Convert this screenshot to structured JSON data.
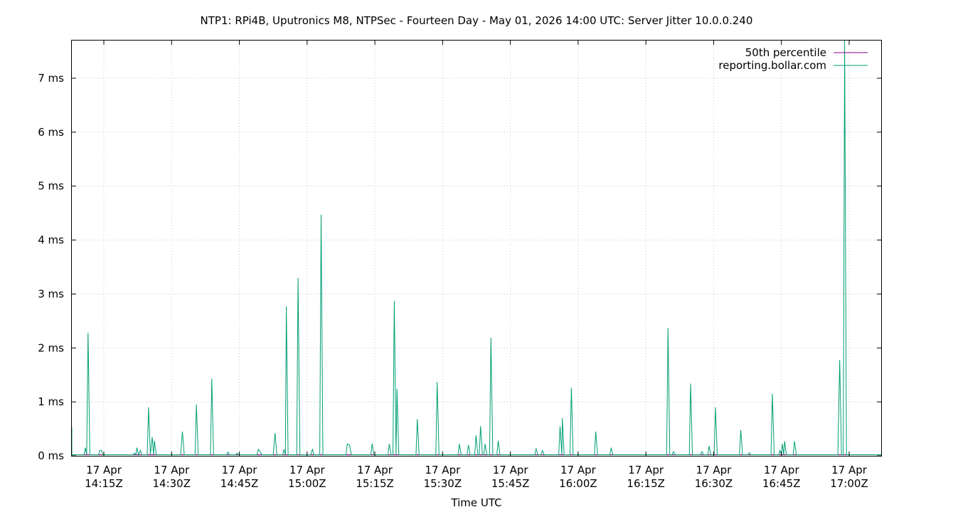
{
  "chart_data": {
    "type": "line",
    "title": "NTP1: RPi4B, Uputronics M8, NTPSec - Fourteen Day - May 01, 2026 14:00 UTC: Server Jitter 10.0.0.240",
    "xlabel": "Time UTC",
    "ylabel": "",
    "x_range_minutes": [
      0,
      180
    ],
    "ylim": [
      0,
      7.7
    ],
    "y_unit": "ms",
    "y_ticks": [
      {
        "value": 0,
        "label": "0 ms"
      },
      {
        "value": 1,
        "label": "1 ms"
      },
      {
        "value": 2,
        "label": "2 ms"
      },
      {
        "value": 3,
        "label": "3 ms"
      },
      {
        "value": 4,
        "label": "4 ms"
      },
      {
        "value": 5,
        "label": "5 ms"
      },
      {
        "value": 6,
        "label": "6 ms"
      },
      {
        "value": 7,
        "label": "7 ms"
      }
    ],
    "x_ticks": [
      {
        "value": 15,
        "date": "17 Apr",
        "time": "14:15Z"
      },
      {
        "value": 30,
        "date": "17 Apr",
        "time": "14:30Z"
      },
      {
        "value": 45,
        "date": "17 Apr",
        "time": "14:45Z"
      },
      {
        "value": 60,
        "date": "17 Apr",
        "time": "15:00Z"
      },
      {
        "value": 75,
        "date": "17 Apr",
        "time": "15:15Z"
      },
      {
        "value": 90,
        "date": "17 Apr",
        "time": "15:30Z"
      },
      {
        "value": 105,
        "date": "17 Apr",
        "time": "15:45Z"
      },
      {
        "value": 120,
        "date": "17 Apr",
        "time": "16:00Z"
      },
      {
        "value": 135,
        "date": "17 Apr",
        "time": "16:15Z"
      },
      {
        "value": 150,
        "date": "17 Apr",
        "time": "16:30Z"
      },
      {
        "value": 165,
        "date": "17 Apr",
        "time": "16:45Z"
      },
      {
        "value": 180,
        "date": "17 Apr",
        "time": "17:00Z"
      }
    ],
    "grid": true,
    "legend_position": "top-right",
    "series": [
      {
        "name": "50th percentile",
        "color": "#800080",
        "points": [
          [
            0,
            0.02
          ],
          [
            180,
            0.02
          ]
        ]
      },
      {
        "name": "reporting.bollar.com",
        "color": "#009e73",
        "baseline": 0.02,
        "points": [
          [
            0,
            0.06
          ],
          [
            1,
            0.02
          ],
          [
            2.5,
            0.02
          ],
          [
            2.9,
            0.53
          ],
          [
            3.4,
            0.02
          ],
          [
            4.4,
            0.02
          ],
          [
            4.7,
            0.45
          ],
          [
            5.1,
            0.02
          ],
          [
            10.6,
            0.02
          ],
          [
            10.9,
            0.15
          ],
          [
            11.2,
            0.02
          ],
          [
            11.5,
            2.28
          ],
          [
            11.9,
            0.02
          ],
          [
            13.8,
            0.02
          ],
          [
            14.1,
            0.1
          ],
          [
            14.5,
            0.1
          ],
          [
            14.8,
            0.02
          ],
          [
            21.5,
            0.02
          ],
          [
            21.8,
            0.05
          ],
          [
            22.1,
            0.02
          ],
          [
            22.3,
            0.15
          ],
          [
            22.7,
            0.02
          ],
          [
            23.1,
            0.1
          ],
          [
            23.4,
            0.02
          ],
          [
            24.6,
            0.02
          ],
          [
            24.9,
            0.9
          ],
          [
            25.3,
            0.02
          ],
          [
            25.7,
            0.35
          ],
          [
            26.0,
            0.02
          ],
          [
            26.2,
            0.28
          ],
          [
            26.6,
            0.02
          ],
          [
            32.0,
            0.02
          ],
          [
            32.4,
            0.45
          ],
          [
            32.8,
            0.02
          ],
          [
            35.2,
            0.02
          ],
          [
            35.5,
            0.95
          ],
          [
            35.9,
            0.02
          ],
          [
            38.6,
            0.02
          ],
          [
            38.9,
            1.43
          ],
          [
            39.3,
            0.02
          ],
          [
            42.2,
            0.02
          ],
          [
            42.5,
            0.07
          ],
          [
            42.8,
            0.02
          ],
          [
            44.2,
            0.02
          ],
          [
            44.5,
            0.05
          ],
          [
            44.8,
            0.02
          ],
          [
            48.9,
            0.02
          ],
          [
            49.2,
            0.12
          ],
          [
            49.6,
            0.08
          ],
          [
            50.0,
            0.02
          ],
          [
            52.5,
            0.02
          ],
          [
            52.9,
            0.42
          ],
          [
            53.3,
            0.02
          ],
          [
            54.6,
            0.02
          ],
          [
            54.9,
            0.12
          ],
          [
            55.2,
            0.02
          ],
          [
            55.4,
            2.77
          ],
          [
            55.8,
            0.02
          ],
          [
            57.7,
            0.02
          ],
          [
            58.0,
            3.3
          ],
          [
            58.4,
            0.02
          ],
          [
            60.8,
            0.02
          ],
          [
            61.2,
            0.12
          ],
          [
            61.5,
            0.02
          ],
          [
            62.8,
            0.02
          ],
          [
            63.1,
            4.47
          ],
          [
            63.5,
            0.02
          ],
          [
            68.6,
            0.02
          ],
          [
            68.9,
            0.22
          ],
          [
            69.4,
            0.2
          ],
          [
            69.8,
            0.02
          ],
          [
            74.1,
            0.02
          ],
          [
            74.4,
            0.23
          ],
          [
            74.8,
            0.02
          ],
          [
            77.9,
            0.02
          ],
          [
            78.2,
            0.22
          ],
          [
            78.6,
            0.02
          ],
          [
            79.0,
            0.02
          ],
          [
            79.3,
            2.87
          ],
          [
            79.7,
            0.02
          ],
          [
            79.9,
            1.24
          ],
          [
            80.3,
            0.02
          ],
          [
            84.1,
            0.02
          ],
          [
            84.4,
            0.68
          ],
          [
            84.8,
            0.02
          ],
          [
            88.5,
            0.02
          ],
          [
            88.8,
            1.37
          ],
          [
            89.2,
            0.02
          ],
          [
            93.4,
            0.02
          ],
          [
            93.7,
            0.22
          ],
          [
            94.1,
            0.02
          ],
          [
            95.4,
            0.02
          ],
          [
            95.7,
            0.2
          ],
          [
            96.1,
            0.02
          ],
          [
            97.1,
            0.02
          ],
          [
            97.4,
            0.38
          ],
          [
            97.8,
            0.02
          ],
          [
            98.1,
            0.02
          ],
          [
            98.4,
            0.55
          ],
          [
            98.8,
            0.02
          ],
          [
            99.1,
            0.02
          ],
          [
            99.4,
            0.22
          ],
          [
            99.8,
            0.02
          ],
          [
            100.4,
            0.02
          ],
          [
            100.7,
            2.19
          ],
          [
            101.1,
            0.02
          ],
          [
            102.0,
            0.02
          ],
          [
            102.3,
            0.28
          ],
          [
            102.7,
            0.02
          ],
          [
            110.4,
            0.02
          ],
          [
            110.7,
            0.13
          ],
          [
            111.1,
            0.02
          ],
          [
            111.8,
            0.02
          ],
          [
            112.1,
            0.1
          ],
          [
            112.5,
            0.02
          ],
          [
            115.7,
            0.02
          ],
          [
            116.0,
            0.55
          ],
          [
            116.4,
            0.02
          ],
          [
            116.5,
            0.7
          ],
          [
            116.9,
            0.02
          ],
          [
            118.2,
            0.02
          ],
          [
            118.5,
            1.26
          ],
          [
            118.9,
            0.02
          ],
          [
            123.6,
            0.02
          ],
          [
            123.9,
            0.45
          ],
          [
            124.3,
            0.02
          ],
          [
            127.0,
            0.02
          ],
          [
            127.3,
            0.15
          ],
          [
            127.7,
            0.02
          ],
          [
            139.6,
            0.02
          ],
          [
            139.9,
            2.37
          ],
          [
            140.3,
            0.02
          ],
          [
            140.8,
            0.02
          ],
          [
            141.1,
            0.08
          ],
          [
            141.5,
            0.02
          ],
          [
            144.6,
            0.02
          ],
          [
            144.9,
            1.34
          ],
          [
            145.3,
            0.02
          ],
          [
            147.1,
            0.02
          ],
          [
            147.4,
            0.08
          ],
          [
            147.8,
            0.02
          ],
          [
            148.7,
            0.02
          ],
          [
            149.0,
            0.18
          ],
          [
            149.4,
            0.02
          ],
          [
            150.1,
            0.02
          ],
          [
            150.4,
            0.9
          ],
          [
            150.8,
            0.02
          ],
          [
            155.7,
            0.02
          ],
          [
            156.0,
            0.48
          ],
          [
            156.4,
            0.02
          ],
          [
            157.6,
            0.02
          ],
          [
            157.9,
            0.06
          ],
          [
            158.2,
            0.02
          ],
          [
            162.7,
            0.02
          ],
          [
            163.0,
            1.15
          ],
          [
            163.4,
            0.02
          ],
          [
            164.4,
            0.02
          ],
          [
            164.7,
            0.1
          ],
          [
            165.0,
            0.02
          ],
          [
            165.2,
            0.22
          ],
          [
            165.5,
            0.02
          ],
          [
            165.7,
            0.27
          ],
          [
            166.1,
            0.02
          ],
          [
            167.6,
            0.02
          ],
          [
            167.9,
            0.27
          ],
          [
            168.3,
            0.02
          ],
          [
            177.5,
            0.02
          ],
          [
            177.9,
            1.78
          ],
          [
            178.3,
            0.02
          ],
          [
            178.7,
            0.02
          ],
          [
            179.0,
            7.7
          ],
          [
            179.4,
            0.02
          ],
          [
            180,
            0.02
          ]
        ]
      }
    ]
  }
}
